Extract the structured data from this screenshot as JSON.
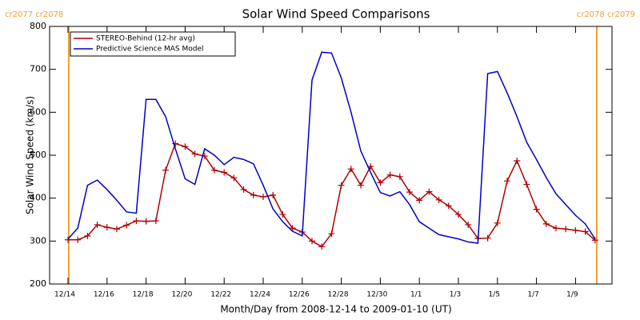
{
  "chart_data": {
    "type": "line",
    "title": "Solar Wind Speed Comparisons",
    "xlabel": "Month/Day from 2008-12-14 to 2009-01-10 (UT)",
    "ylabel": "Solar Wind Speed (km/s)",
    "annotations": [
      "cr2077 cr2078",
      "cr2078 cr2079"
    ],
    "categories": [
      "12/14",
      null,
      null,
      null,
      "12/16",
      null,
      null,
      null,
      "12/18",
      null,
      null,
      null,
      "12/20",
      null,
      null,
      null,
      "12/22",
      null,
      null,
      null,
      "12/24",
      null,
      null,
      null,
      "12/26",
      null,
      null,
      null,
      "12/28",
      null,
      null,
      null,
      "12/30",
      null,
      null,
      null,
      "1/1",
      null,
      null,
      null,
      "1/3",
      null,
      null,
      null,
      "1/5",
      null,
      null,
      null,
      "1/7",
      null,
      null,
      null,
      "1/9",
      null,
      null
    ],
    "series": [
      {
        "name": "STEREO-Behind (12-hr avg)",
        "color": "#b00000",
        "values": [
          303,
          303,
          312,
          338,
          332,
          328,
          337,
          347,
          346,
          347,
          465,
          527,
          520,
          503,
          498,
          465,
          460,
          447,
          420,
          407,
          403,
          407,
          362,
          330,
          321,
          300,
          287,
          317,
          430,
          468,
          430,
          474,
          436,
          454,
          450,
          414,
          395,
          415,
          396,
          382,
          362,
          338,
          306,
          307,
          342,
          440,
          487,
          432,
          374,
          340,
          330,
          328,
          325,
          322,
          302
        ]
      },
      {
        "name": "Predictive Science MAS Model",
        "color": "#0000c8",
        "values": [
          305,
          330,
          430,
          442,
          420,
          395,
          368,
          365,
          630,
          630,
          590,
          515,
          445,
          432,
          515,
          500,
          478,
          495,
          490,
          480,
          430,
          375,
          345,
          323,
          312,
          675,
          740,
          738,
          680,
          600,
          510,
          460,
          413,
          405,
          415,
          385,
          345,
          330,
          315,
          310,
          305,
          298,
          295,
          690,
          695,
          645,
          590,
          530,
          490,
          448,
          410,
          385,
          360,
          340,
          305
        ]
      }
    ],
    "ylim": [
      200,
      800
    ],
    "yticks": [
      200,
      300,
      400,
      500,
      600,
      700,
      800
    ],
    "legend": "upper left"
  }
}
